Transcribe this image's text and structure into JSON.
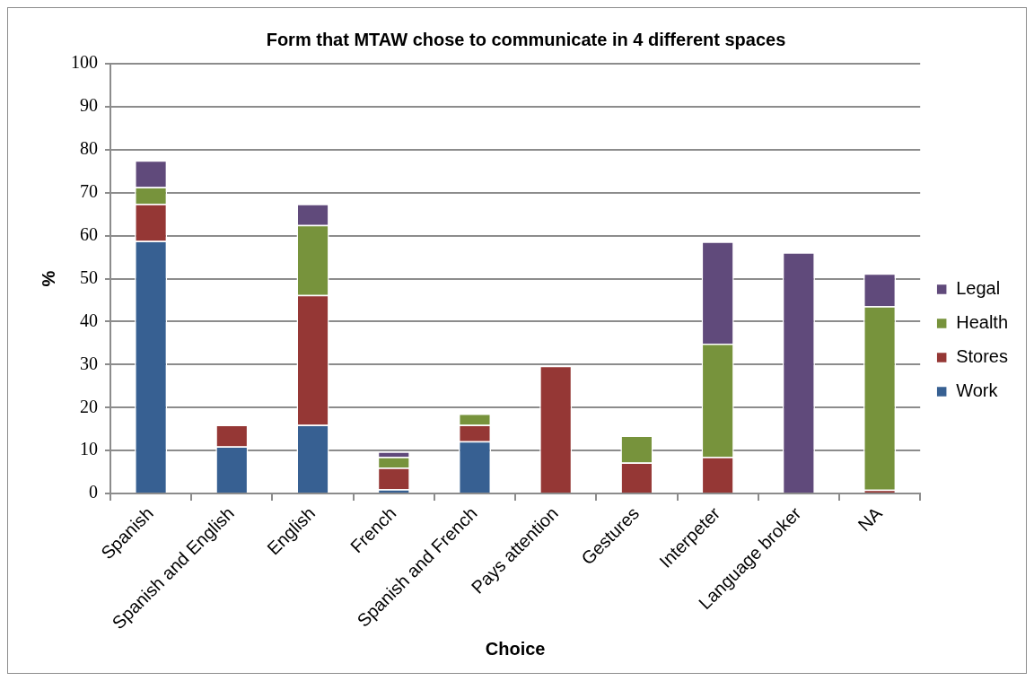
{
  "chart_data": {
    "type": "bar",
    "title": "Form that MTAW chose to communicate in 4 different spaces",
    "xlabel": "Choice",
    "ylabel": "%",
    "categories": [
      "Spanish",
      "Spanish and English",
      "English",
      "French",
      "Spanish and French",
      "Pays attention",
      "Gestures",
      "Interpeter",
      "Language broker",
      "NA"
    ],
    "series": [
      {
        "name": "Work",
        "color": "#376092",
        "values": [
          58.8,
          11,
          16,
          1,
          12.2,
          null,
          null,
          null,
          null,
          null
        ]
      },
      {
        "name": "Stores",
        "color": "#953735",
        "values": [
          8.6,
          5,
          30.2,
          5,
          3.8,
          29.7,
          7.2,
          8.5,
          null,
          0.9
        ]
      },
      {
        "name": "Health",
        "color": "#77933c",
        "values": [
          3.9,
          null,
          16.3,
          2.5,
          2.6,
          null,
          6.3,
          26.4,
          null,
          42.7
        ]
      },
      {
        "name": "Legal",
        "color": "#604a7b",
        "values": [
          6.2,
          null,
          4.9,
          1.3,
          null,
          null,
          null,
          23.7,
          56.1,
          7.6
        ]
      }
    ],
    "stacked": true,
    "ylim": [
      0,
      100
    ],
    "yticks": [
      0,
      10,
      20,
      30,
      40,
      50,
      60,
      70,
      80,
      90,
      100
    ],
    "grid": "y",
    "legend": "right"
  }
}
